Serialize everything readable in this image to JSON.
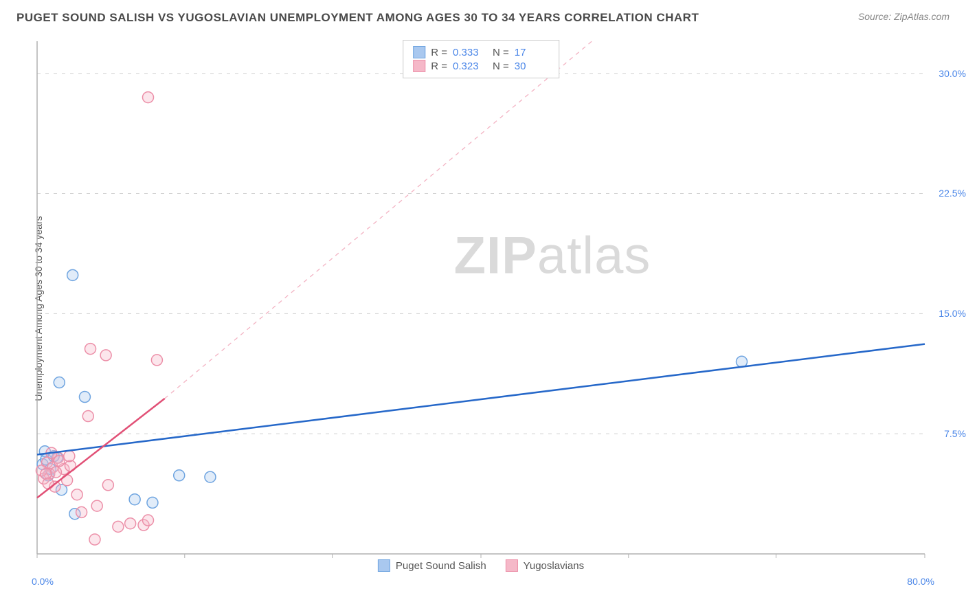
{
  "header": {
    "title": "PUGET SOUND SALISH VS YUGOSLAVIAN UNEMPLOYMENT AMONG AGES 30 TO 34 YEARS CORRELATION CHART",
    "source": "Source: ZipAtlas.com"
  },
  "chart": {
    "type": "scatter",
    "y_axis_label": "Unemployment Among Ages 30 to 34 years",
    "background_color": "#ffffff",
    "grid_color": "#d0d0d0",
    "axis_color": "#b0b0b0",
    "xlim": [
      0,
      80
    ],
    "ylim": [
      0,
      32
    ],
    "y_ticks": [
      {
        "v": 7.5,
        "label": "7.5%"
      },
      {
        "v": 15.0,
        "label": "15.0%"
      },
      {
        "v": 22.5,
        "label": "22.5%"
      },
      {
        "v": 30.0,
        "label": "30.0%"
      }
    ],
    "x_left_label": "0.0%",
    "x_right_label": "80.0%",
    "x_tick_positions": [
      0,
      13.3,
      26.6,
      40,
      53.3,
      66.6,
      80
    ],
    "watermark": {
      "zip": "ZIP",
      "atlas": "atlas"
    },
    "series": [
      {
        "name": "Puget Sound Salish",
        "color_fill": "#a9c8ef",
        "color_stroke": "#6ea4e0",
        "marker_r": 8,
        "points": [
          {
            "x": 3.2,
            "y": 17.4
          },
          {
            "x": 2.0,
            "y": 10.7
          },
          {
            "x": 4.3,
            "y": 9.8
          },
          {
            "x": 0.7,
            "y": 6.4
          },
          {
            "x": 0.5,
            "y": 5.6
          },
          {
            "x": 1.0,
            "y": 4.9
          },
          {
            "x": 2.2,
            "y": 4.0
          },
          {
            "x": 8.8,
            "y": 3.4
          },
          {
            "x": 10.4,
            "y": 3.2
          },
          {
            "x": 12.8,
            "y": 4.9
          },
          {
            "x": 15.6,
            "y": 4.8
          },
          {
            "x": 3.4,
            "y": 2.5
          },
          {
            "x": 0.8,
            "y": 5.9
          },
          {
            "x": 1.8,
            "y": 6.0
          },
          {
            "x": 1.2,
            "y": 5.3
          },
          {
            "x": 63.5,
            "y": 12.0
          },
          {
            "x": 1.5,
            "y": 6.1
          }
        ],
        "trend": {
          "solid": {
            "x1": 0,
            "y1": 6.2,
            "x2": 80,
            "y2": 13.1,
            "color": "#2668c9"
          },
          "dashed": null
        },
        "stats": {
          "R": "0.333",
          "N": "17"
        }
      },
      {
        "name": "Yugoslavians",
        "color_fill": "#f5b8c8",
        "color_stroke": "#ec8fa8",
        "marker_r": 8,
        "points": [
          {
            "x": 10.0,
            "y": 28.5
          },
          {
            "x": 4.8,
            "y": 12.8
          },
          {
            "x": 6.2,
            "y": 12.4
          },
          {
            "x": 10.8,
            "y": 12.1
          },
          {
            "x": 4.6,
            "y": 8.6
          },
          {
            "x": 1.9,
            "y": 6.0
          },
          {
            "x": 0.9,
            "y": 5.7
          },
          {
            "x": 1.4,
            "y": 5.4
          },
          {
            "x": 2.4,
            "y": 5.3
          },
          {
            "x": 1.1,
            "y": 5.0
          },
          {
            "x": 2.7,
            "y": 4.6
          },
          {
            "x": 6.4,
            "y": 4.3
          },
          {
            "x": 0.6,
            "y": 4.7
          },
          {
            "x": 3.6,
            "y": 3.7
          },
          {
            "x": 4.0,
            "y": 2.6
          },
          {
            "x": 5.4,
            "y": 3.0
          },
          {
            "x": 3.0,
            "y": 5.5
          },
          {
            "x": 7.3,
            "y": 1.7
          },
          {
            "x": 8.4,
            "y": 1.9
          },
          {
            "x": 9.6,
            "y": 1.8
          },
          {
            "x": 10.0,
            "y": 2.1
          },
          {
            "x": 5.2,
            "y": 0.9
          },
          {
            "x": 1.6,
            "y": 4.2
          },
          {
            "x": 0.4,
            "y": 5.2
          },
          {
            "x": 2.0,
            "y": 5.8
          },
          {
            "x": 1.3,
            "y": 6.3
          },
          {
            "x": 2.9,
            "y": 6.1
          },
          {
            "x": 1.7,
            "y": 5.1
          },
          {
            "x": 0.8,
            "y": 5.0
          },
          {
            "x": 1.0,
            "y": 4.4
          }
        ],
        "trend": {
          "solid": {
            "x1": 0,
            "y1": 3.5,
            "x2": 11.5,
            "y2": 9.7,
            "color": "#e15076"
          },
          "dashed": {
            "x1": 11.5,
            "y1": 9.7,
            "x2": 50,
            "y2": 32.0,
            "color": "#f3b3c3"
          }
        },
        "stats": {
          "R": "0.323",
          "N": "30"
        }
      }
    ],
    "legend": [
      {
        "swatch_fill": "#a9c8ef",
        "swatch_stroke": "#6ea4e0",
        "label": "Puget Sound Salish"
      },
      {
        "swatch_fill": "#f5b8c8",
        "swatch_stroke": "#ec8fa8",
        "label": "Yugoslavians"
      }
    ]
  }
}
